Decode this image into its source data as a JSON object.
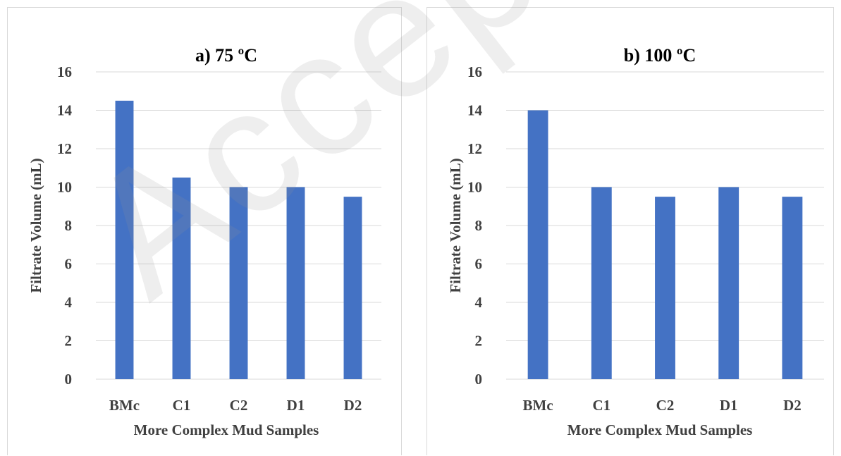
{
  "watermark_text": "Accepted for P",
  "chart_data": [
    {
      "type": "bar",
      "title": "a) 75 ºC",
      "xlabel": "More Complex Mud Samples",
      "ylabel": "Filtrate Volume (mL)",
      "categories": [
        "BMc",
        "C1",
        "C2",
        "D1",
        "D2"
      ],
      "values": [
        14.5,
        10.5,
        10,
        10,
        9.5
      ],
      "ylim": [
        0,
        16
      ],
      "yticks": [
        0,
        2,
        4,
        6,
        8,
        10,
        12,
        14,
        16
      ],
      "grid": true,
      "bar_color": "#4472C4"
    },
    {
      "type": "bar",
      "title": "b) 100 ºC",
      "xlabel": "More Complex Mud Samples",
      "ylabel": "Filtrate Volume (mL)",
      "categories": [
        "BMc",
        "C1",
        "C2",
        "D1",
        "D2"
      ],
      "values": [
        14,
        10,
        9.5,
        10,
        9.5
      ],
      "ylim": [
        0,
        16
      ],
      "yticks": [
        0,
        2,
        4,
        6,
        8,
        10,
        12,
        14,
        16
      ],
      "grid": true,
      "bar_color": "#4472C4"
    }
  ]
}
